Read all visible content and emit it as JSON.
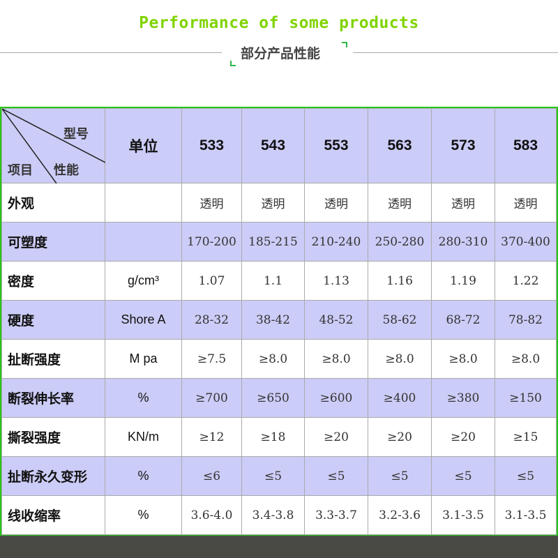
{
  "header": {
    "title": "Performance of some products",
    "subtitle": "部分产品性能"
  },
  "table": {
    "corner": {
      "top": "型号",
      "bottom_left": "项目",
      "bottom_right": "性能"
    },
    "unit_header": "单位",
    "models": [
      "533",
      "543",
      "553",
      "563",
      "573",
      "583"
    ],
    "rows": [
      {
        "label": "外观",
        "unit": "",
        "values": [
          "透明",
          "透明",
          "透明",
          "透明",
          "透明",
          "透明"
        ]
      },
      {
        "label": "可塑度",
        "unit": "",
        "values": [
          "170-200",
          "185-215",
          "210-240",
          "250-280",
          "280-310",
          "370-400"
        ]
      },
      {
        "label": "密度",
        "unit": "g/cm³",
        "values": [
          "1.07",
          "1.1",
          "1.13",
          "1.16",
          "1.19",
          "1.22"
        ]
      },
      {
        "label": "硬度",
        "unit": "Shore A",
        "values": [
          "28-32",
          "38-42",
          "48-52",
          "58-62",
          "68-72",
          "78-82"
        ]
      },
      {
        "label": "扯断强度",
        "unit": "M pa",
        "values": [
          "≥7.5",
          "≥8.0",
          "≥8.0",
          "≥8.0",
          "≥8.0",
          "≥8.0"
        ]
      },
      {
        "label": "断裂伸长率",
        "unit": "%",
        "values": [
          "≥700",
          "≥650",
          "≥600",
          "≥400",
          "≥380",
          "≥150"
        ]
      },
      {
        "label": "撕裂强度",
        "unit": "KN/m",
        "values": [
          "≥12",
          "≥18",
          "≥20",
          "≥20",
          "≥20",
          "≥15"
        ]
      },
      {
        "label": "扯断永久变形",
        "unit": "%",
        "values": [
          "≤6",
          "≤5",
          "≤5",
          "≤5",
          "≤5",
          "≤5"
        ]
      },
      {
        "label": "线收缩率",
        "unit": "%",
        "values": [
          "3.6-4.0",
          "3.4-3.8",
          "3.3-3.7",
          "3.2-3.6",
          "3.1-3.5",
          "3.1-3.5"
        ]
      }
    ]
  },
  "colors": {
    "title": "#7fd400",
    "border": "#29c41a",
    "row_highlight": "#ccccf8"
  }
}
